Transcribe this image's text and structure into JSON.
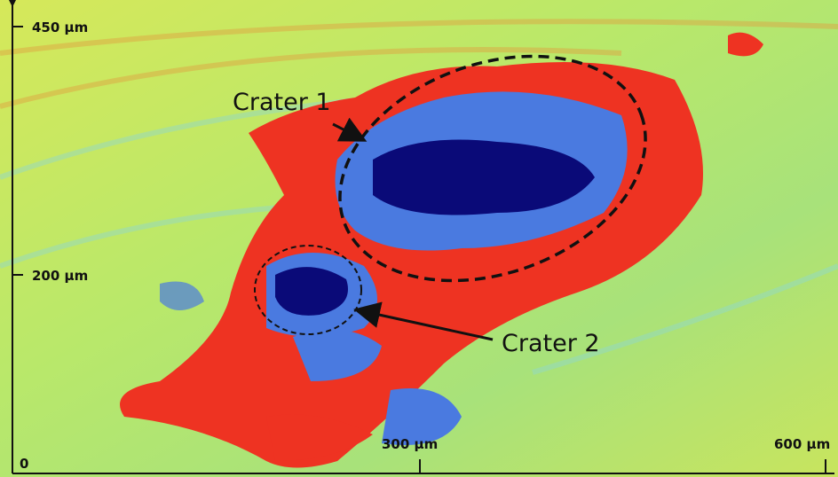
{
  "axis_labels": {
    "y_top": "450 µm",
    "y_mid": "200 µm",
    "origin": "0",
    "x_mid": "300 µm",
    "x_right": "600 µm"
  },
  "annotations": [
    {
      "label": "Crater 1"
    },
    {
      "label": "Crater 2"
    }
  ]
}
